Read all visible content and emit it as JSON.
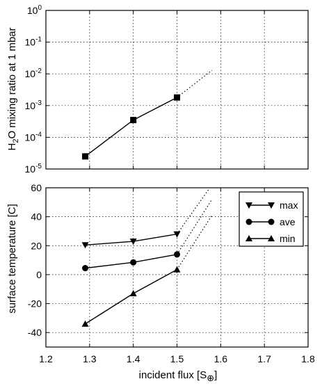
{
  "chart_data": [
    {
      "type": "line",
      "ylabel_main": "H",
      "ylabel_sub": "2",
      "ylabel_rest": "O mixing ratio at 1 mbar",
      "yscale": "log",
      "xlim": [
        1.2,
        1.8
      ],
      "ylim": [
        1e-05,
        1
      ],
      "grid": true,
      "x_ticks": [
        1.2,
        1.3,
        1.4,
        1.5,
        1.6,
        1.7,
        1.8
      ],
      "y_ticks": [
        {
          "base": "10",
          "exp": "0",
          "value": 1
        },
        {
          "base": "10",
          "exp": "-1",
          "value": 0.1
        },
        {
          "base": "10",
          "exp": "-2",
          "value": 0.01
        },
        {
          "base": "10",
          "exp": "-3",
          "value": 0.001
        },
        {
          "base": "10",
          "exp": "-4",
          "value": 0.0001
        },
        {
          "base": "10",
          "exp": "-5",
          "value": 1e-05
        }
      ],
      "series": [
        {
          "marker": "square",
          "x": [
            1.29,
            1.4,
            1.5
          ],
          "y": [
            2.5e-05,
            0.00035,
            0.0018
          ],
          "extrapolation": {
            "x": [
              1.5,
              1.58
            ],
            "y": [
              0.0018,
              0.013
            ],
            "style": "dotted"
          }
        }
      ]
    },
    {
      "type": "line",
      "xlabel_main": "incident flux [S",
      "xlabel_sub": "⊕",
      "xlabel_end": "]",
      "ylabel": "surface temperature [C]",
      "xlim": [
        1.2,
        1.8
      ],
      "ylim": [
        -50,
        60
      ],
      "grid": true,
      "x_ticks": [
        1.2,
        1.3,
        1.4,
        1.5,
        1.6,
        1.7,
        1.8
      ],
      "y_ticks": [
        60,
        40,
        20,
        0,
        -20,
        -40
      ],
      "legend_position": "top-right",
      "series": [
        {
          "name": "max",
          "marker": "triangle-down",
          "x": [
            1.29,
            1.4,
            1.5
          ],
          "y": [
            20.5,
            23,
            28
          ],
          "extrapolation": {
            "x": [
              1.5,
              1.575
            ],
            "y": [
              28,
              60
            ],
            "style": "dotted"
          }
        },
        {
          "name": "ave",
          "marker": "circle",
          "x": [
            1.29,
            1.4,
            1.5
          ],
          "y": [
            4.5,
            8.5,
            14
          ],
          "extrapolation": {
            "x": [
              1.5,
              1.58
            ],
            "y": [
              14,
              52
            ],
            "style": "dotted"
          }
        },
        {
          "name": "min",
          "marker": "triangle-up",
          "x": [
            1.29,
            1.4,
            1.5
          ],
          "y": [
            -34,
            -13,
            3.5
          ],
          "extrapolation": {
            "x": [
              1.5,
              1.58
            ],
            "y": [
              3.5,
              41
            ],
            "style": "dotted"
          }
        }
      ]
    }
  ]
}
